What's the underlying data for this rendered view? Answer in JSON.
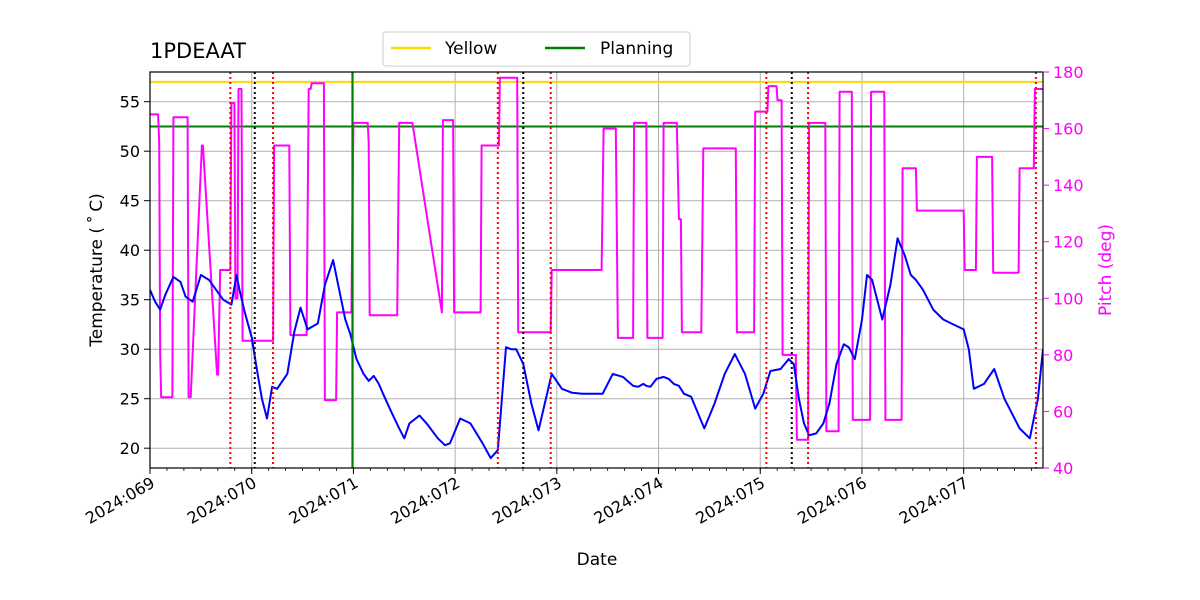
{
  "chart_data": {
    "type": "line",
    "title": "1PDEAAT",
    "xlabel": "Date",
    "ylabel": "Temperature ($^\\circ$C)",
    "ylabel_display": "Temperature ( ˚ C)",
    "y2label": "Pitch (deg)",
    "xlim": [
      69.0,
      77.78
    ],
    "ylim": [
      18.0,
      58.0
    ],
    "y2lim": [
      40,
      180
    ],
    "x_ticks": [
      {
        "value": 69,
        "label": "2024:069"
      },
      {
        "value": 70,
        "label": "2024:070"
      },
      {
        "value": 71,
        "label": "2024:071"
      },
      {
        "value": 72,
        "label": "2024:072"
      },
      {
        "value": 73,
        "label": "2024:073"
      },
      {
        "value": 74,
        "label": "2024:074"
      },
      {
        "value": 75,
        "label": "2024:075"
      },
      {
        "value": 76,
        "label": "2024:076"
      },
      {
        "value": 77,
        "label": "2024:077"
      }
    ],
    "y_ticks": [
      20,
      25,
      30,
      35,
      40,
      45,
      50,
      55
    ],
    "y2_ticks": [
      40,
      60,
      80,
      100,
      120,
      140,
      160,
      180
    ],
    "grid": true,
    "legend": {
      "placement": "top-center",
      "entries": [
        {
          "name": "Yellow",
          "color": "#ffd700"
        },
        {
          "name": "Planning",
          "color": "#008000"
        }
      ]
    },
    "colors": {
      "temperature": "#0000ff",
      "pitch": "#ff00ff",
      "yellow": "#ffd700",
      "planning": "#008000",
      "red_lines": "#ff0000",
      "black_lines": "#000000"
    },
    "hlines": [
      {
        "name": "Yellow",
        "y": 57.0
      },
      {
        "name": "Planning",
        "y": 52.5
      }
    ],
    "vline_planning": [
      70.99
    ],
    "vlines_red": [
      69.79,
      70.21,
      72.42,
      72.94,
      75.06,
      75.47,
      77.71
    ],
    "vlines_black": [
      70.03,
      72.67,
      75.31
    ],
    "series": [
      {
        "name": "Temperature",
        "axis": "left",
        "x": [
          69.0,
          69.05,
          69.1,
          69.15,
          69.23,
          69.3,
          69.35,
          69.42,
          69.5,
          69.58,
          69.65,
          69.72,
          69.8,
          69.85,
          69.88,
          69.93,
          70.0,
          70.05,
          70.1,
          70.15,
          70.2,
          70.25,
          70.35,
          70.42,
          70.48,
          70.55,
          70.6,
          70.65,
          70.72,
          70.8,
          70.87,
          70.92,
          70.97,
          71.03,
          71.1,
          71.15,
          71.2,
          71.25,
          71.3,
          71.38,
          71.45,
          71.5,
          71.55,
          71.65,
          71.72,
          71.83,
          71.9,
          71.95,
          72.05,
          72.15,
          72.27,
          72.35,
          72.42,
          72.5,
          72.55,
          72.6,
          72.67,
          72.75,
          72.82,
          72.87,
          72.95,
          73.05,
          73.15,
          73.25,
          73.35,
          73.45,
          73.55,
          73.65,
          73.75,
          73.8,
          73.85,
          73.88,
          73.92,
          73.98,
          74.05,
          74.1,
          74.15,
          74.2,
          74.25,
          74.32,
          74.45,
          74.55,
          74.65,
          74.75,
          74.85,
          74.95,
          75.03,
          75.1,
          75.2,
          75.28,
          75.33,
          75.38,
          75.43,
          75.48,
          75.55,
          75.62,
          75.68,
          75.75,
          75.82,
          75.87,
          75.93,
          76.0,
          76.05,
          76.1,
          76.15,
          76.2,
          76.28,
          76.35,
          76.42,
          76.48,
          76.53,
          76.6,
          76.7,
          76.8,
          76.9,
          77.0,
          77.05,
          77.1,
          77.2,
          77.3,
          77.4,
          77.55,
          77.65,
          77.73,
          77.78
        ],
        "values": [
          36.0,
          34.8,
          34.0,
          35.5,
          37.3,
          36.8,
          35.3,
          34.8,
          37.5,
          37.0,
          36.0,
          35.0,
          34.5,
          37.5,
          36.0,
          33.8,
          31.2,
          28.0,
          25.0,
          23.0,
          26.2,
          26.0,
          27.5,
          31.8,
          34.2,
          32.0,
          32.3,
          32.6,
          36.5,
          39.0,
          35.5,
          33.0,
          31.5,
          29.0,
          27.5,
          26.8,
          27.3,
          26.5,
          25.3,
          23.5,
          22.0,
          21.0,
          22.5,
          23.3,
          22.5,
          21.0,
          20.3,
          20.5,
          23.0,
          22.5,
          20.5,
          19.0,
          19.8,
          30.2,
          30.0,
          30.0,
          28.5,
          24.5,
          21.8,
          24.0,
          27.5,
          26.0,
          25.6,
          25.5,
          25.5,
          25.5,
          27.5,
          27.2,
          26.3,
          26.2,
          26.5,
          26.3,
          26.2,
          27.0,
          27.2,
          27.0,
          26.5,
          26.3,
          25.5,
          25.2,
          22.0,
          24.5,
          27.5,
          29.5,
          27.5,
          24.0,
          25.5,
          27.8,
          28.0,
          29.0,
          28.5,
          25.0,
          22.5,
          21.3,
          21.5,
          22.5,
          24.5,
          28.5,
          30.5,
          30.2,
          29.0,
          33.0,
          37.5,
          37.0,
          35.0,
          33.0,
          36.5,
          41.2,
          39.5,
          37.5,
          37.0,
          36.0,
          34.0,
          33.0,
          32.5,
          32.0,
          30.0,
          26.0,
          26.5,
          28.0,
          25.0,
          22.0,
          21.0,
          25.0,
          30.0
        ]
      },
      {
        "name": "Pitch",
        "axis": "right",
        "x": [
          69.0,
          69.08,
          69.09,
          69.1,
          69.11,
          69.22,
          69.23,
          69.37,
          69.38,
          69.4,
          69.51,
          69.52,
          69.66,
          69.67,
          69.69,
          69.79,
          69.8,
          69.83,
          69.84,
          69.86,
          69.87,
          69.9,
          69.91,
          69.95,
          69.96,
          70.21,
          70.22,
          70.37,
          70.38,
          70.54,
          70.56,
          70.58,
          70.59,
          70.71,
          70.72,
          70.83,
          70.84,
          70.98,
          71.0,
          71.14,
          71.15,
          71.16,
          71.43,
          71.45,
          71.58,
          71.87,
          71.88,
          71.98,
          71.99,
          72.25,
          72.26,
          72.43,
          72.44,
          72.61,
          72.62,
          72.94,
          72.95,
          73.44,
          73.46,
          73.58,
          73.6,
          73.75,
          73.76,
          73.88,
          73.89,
          74.04,
          74.05,
          74.18,
          74.2,
          74.22,
          74.23,
          74.42,
          74.44,
          74.76,
          74.77,
          74.94,
          74.95,
          75.05,
          75.06,
          75.07,
          75.08,
          75.16,
          75.17,
          75.21,
          75.22,
          75.35,
          75.36,
          75.47,
          75.48,
          75.64,
          75.65,
          75.77,
          75.78,
          75.9,
          75.91,
          76.08,
          76.09,
          76.22,
          76.23,
          76.39,
          76.4,
          76.53,
          76.54,
          77.0,
          77.01,
          77.12,
          77.13,
          77.28,
          77.29,
          77.54,
          77.55,
          77.69,
          77.7,
          77.78
        ],
        "values": [
          165,
          165,
          155,
          80,
          65,
          65,
          164,
          164,
          65,
          65,
          154,
          154,
          73,
          73,
          110,
          110,
          169,
          169,
          100,
          100,
          174,
          174,
          85,
          85,
          85,
          85,
          154,
          154,
          87,
          87,
          174,
          174,
          176,
          176,
          64,
          64,
          95,
          95,
          162,
          162,
          155,
          94,
          94,
          162,
          162,
          95,
          163,
          163,
          95,
          95,
          154,
          154,
          178,
          178,
          88,
          88,
          110,
          110,
          160,
          160,
          86,
          86,
          162,
          162,
          86,
          86,
          162,
          162,
          128,
          128,
          88,
          88,
          153,
          153,
          88,
          88,
          166,
          166,
          166,
          166,
          175,
          175,
          170,
          170,
          80,
          80,
          50,
          50,
          162,
          162,
          53,
          53,
          173,
          173,
          57,
          57,
          173,
          173,
          57,
          57,
          146,
          146,
          131,
          131,
          110,
          110,
          150,
          150,
          109,
          109,
          146,
          146,
          174,
          174
        ]
      }
    ]
  }
}
